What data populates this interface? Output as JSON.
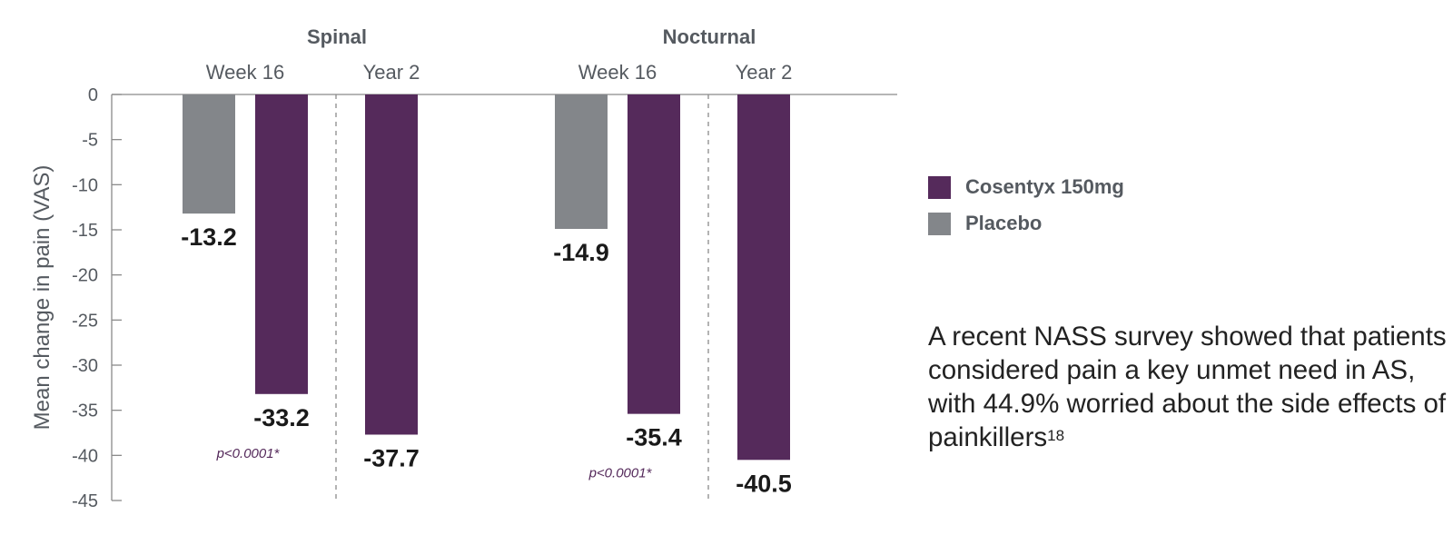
{
  "chart_data": {
    "type": "bar",
    "ylabel": "Mean change in pain (VAS)",
    "ylim": [
      -45,
      0
    ],
    "yticks": [
      "0",
      "-5",
      "-10",
      "-15",
      "-20",
      "-25",
      "-30",
      "-35",
      "-40",
      "-45"
    ],
    "groups": [
      {
        "name": "Spinal",
        "timepoints": [
          {
            "name": "Week 16",
            "bars": [
              {
                "series": "Placebo",
                "value": -13.2,
                "label": "-13.2"
              },
              {
                "series": "Cosentyx 150mg",
                "value": -33.2,
                "label": "-33.2",
                "note": "p<0.0001*"
              }
            ]
          },
          {
            "name": "Year 2",
            "bars": [
              {
                "series": "Cosentyx 150mg",
                "value": -37.7,
                "label": "-37.7"
              }
            ]
          }
        ]
      },
      {
        "name": "Nocturnal",
        "timepoints": [
          {
            "name": "Week 16",
            "bars": [
              {
                "series": "Placebo",
                "value": -14.9,
                "label": "-14.9"
              },
              {
                "series": "Cosentyx 150mg",
                "value": -35.4,
                "label": "-35.4",
                "note": "p<0.0001*"
              }
            ]
          },
          {
            "name": "Year 2",
            "bars": [
              {
                "series": "Cosentyx 150mg",
                "value": -40.5,
                "label": "-40.5"
              }
            ]
          }
        ]
      }
    ],
    "series": [
      {
        "name": "Cosentyx 150mg",
        "color": "#552a5b"
      },
      {
        "name": "Placebo",
        "color": "#83868a"
      }
    ],
    "grid": false,
    "legend_position": "right"
  },
  "note": {
    "text": "A recent NASS survey showed that patients considered pain a key unmet need in AS, with 44.9% worried about the side effects of painkillers",
    "superscript": "18"
  }
}
